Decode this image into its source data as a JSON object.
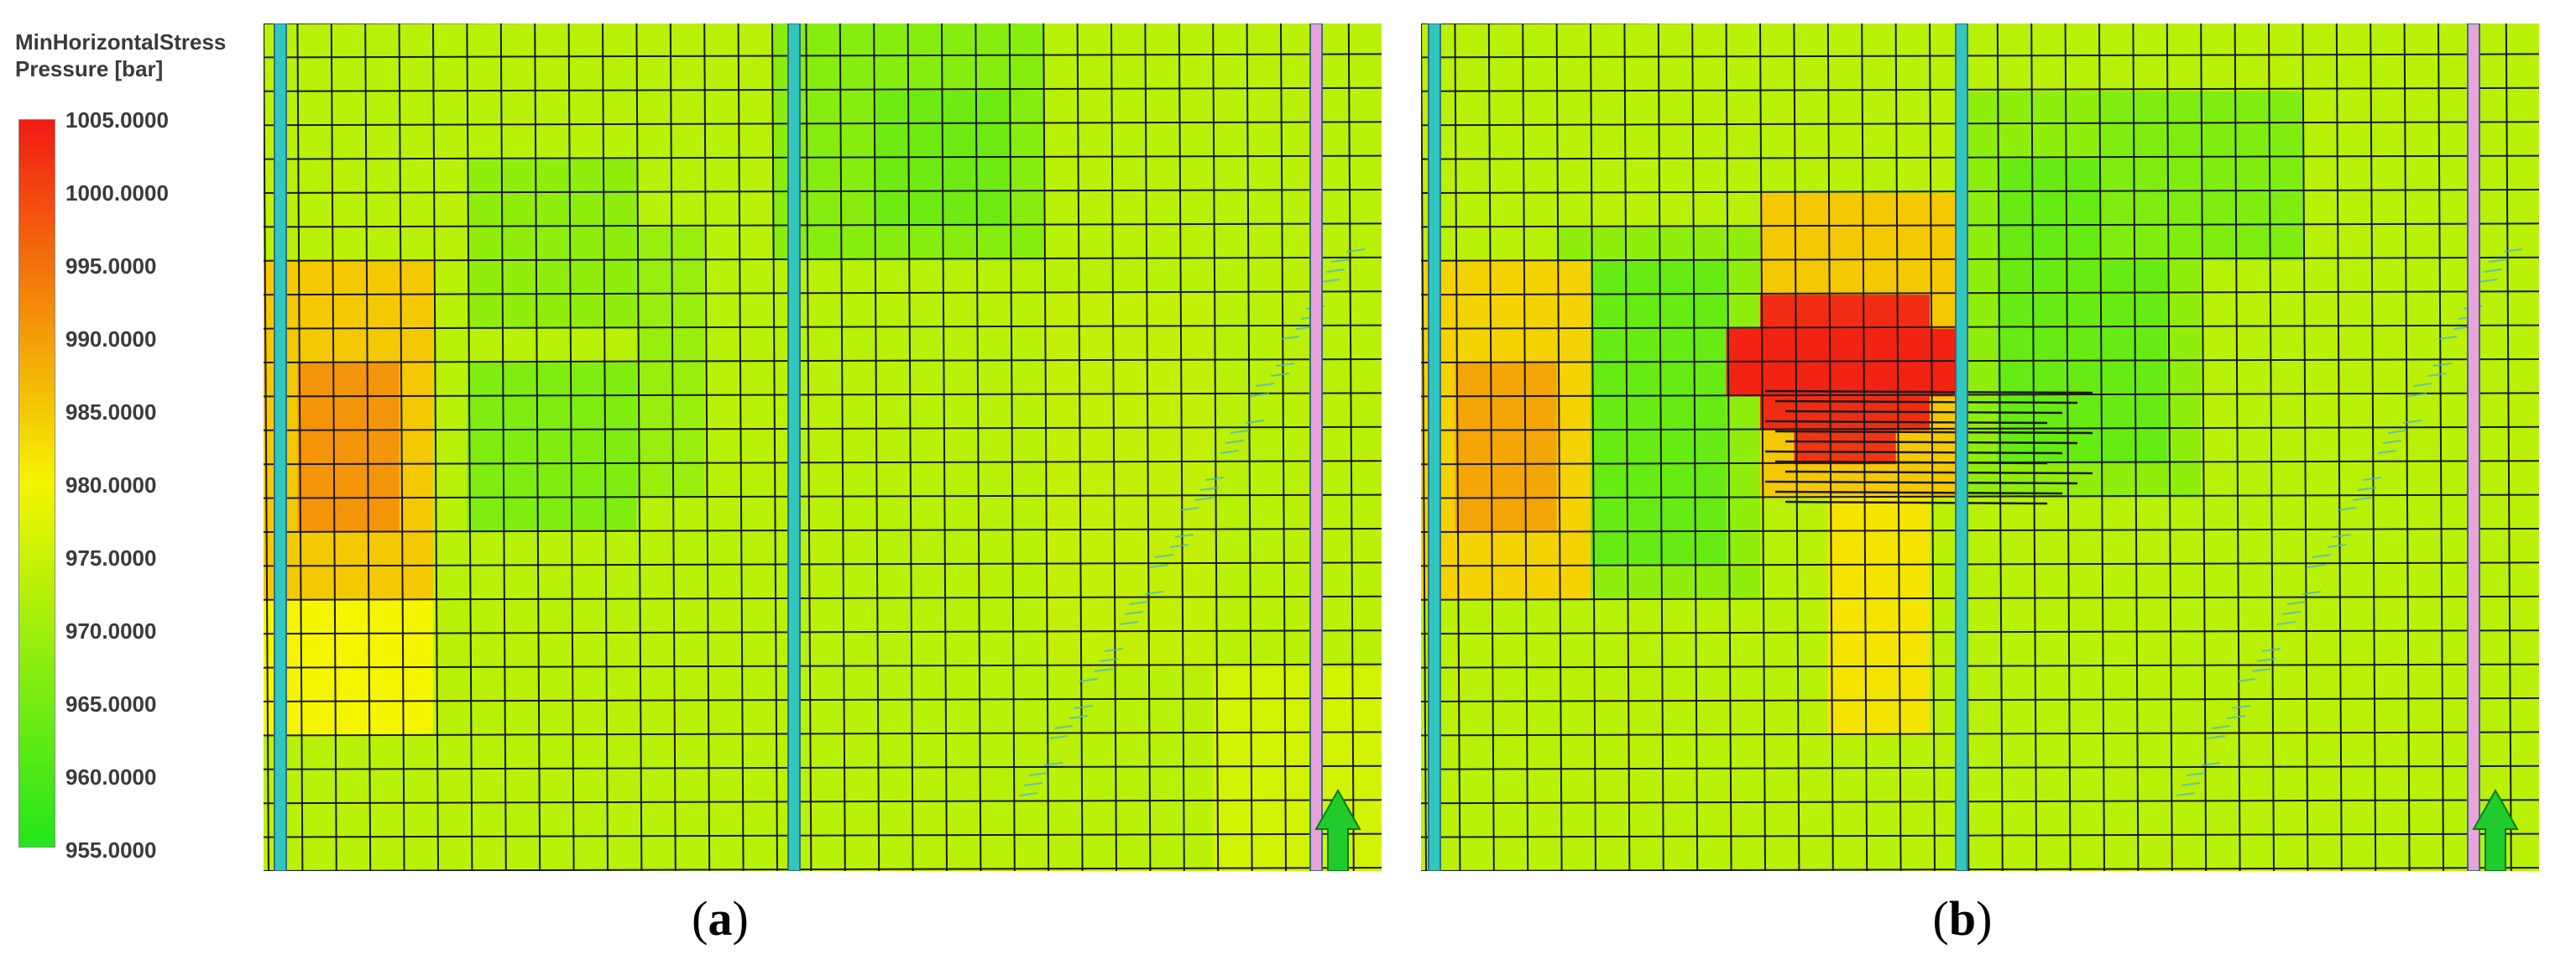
{
  "legend": {
    "title_line1": "MinHorizontalStress",
    "title_line2": "Pressure [bar]",
    "ticks": [
      "1005.0000",
      "1000.0000",
      "995.0000",
      "990.0000",
      "985.0000",
      "980.0000",
      "975.0000",
      "970.0000",
      "965.0000",
      "960.0000",
      "955.0000"
    ],
    "min": 955,
    "max": 1005,
    "colors": {
      "low": "#22e61c",
      "mid": "#f5f500",
      "high": "#f21a14"
    }
  },
  "panels": [
    {
      "id": "a",
      "label": "a",
      "paren_open": "(",
      "paren_close": ")",
      "background_value": 973,
      "fracture_hits": false
    },
    {
      "id": "b",
      "label": "b",
      "paren_open": "(",
      "paren_close": ")",
      "background_value": 973,
      "fracture_hits": true
    }
  ],
  "wells": {
    "cyan_color": "#2fc7c0",
    "pink_color": "#e7a3dc",
    "arrow_color": "#1fcc2c"
  }
}
